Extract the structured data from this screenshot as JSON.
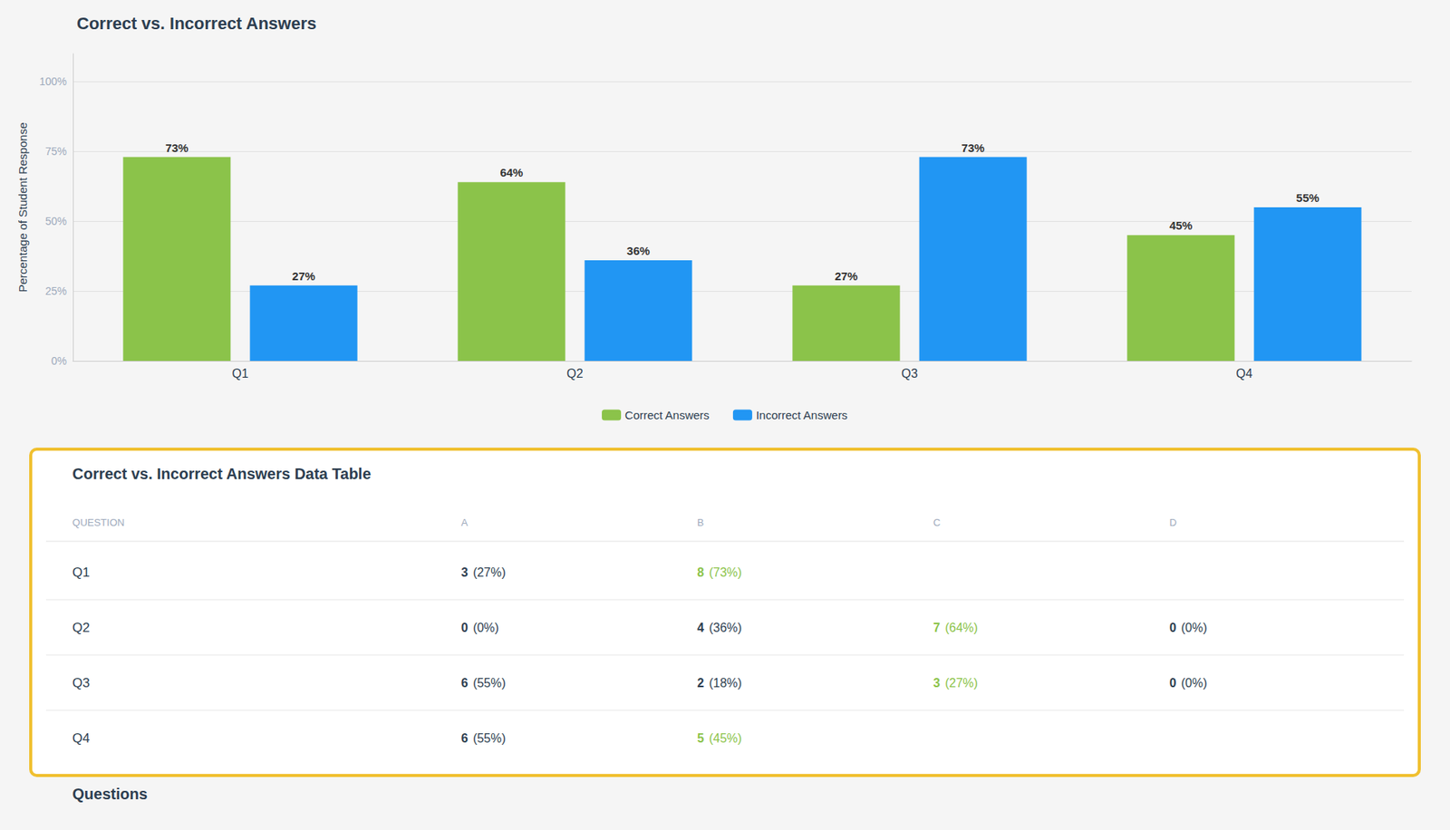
{
  "chart_data": [
    {
      "type": "bar",
      "title": "Correct vs. Incorrect Answers",
      "categories": [
        "Q1",
        "Q2",
        "Q3",
        "Q4"
      ],
      "series": [
        {
          "name": "Correct Answers",
          "color": "#8bc34a",
          "values": [
            73,
            64,
            27,
            45
          ],
          "value_labels": [
            "73%",
            "64%",
            "27%",
            "45%"
          ]
        },
        {
          "name": "Incorrect Answers",
          "color": "#2196f3",
          "values": [
            27,
            36,
            73,
            55
          ],
          "value_labels": [
            "27%",
            "36%",
            "73%",
            "55%"
          ]
        }
      ],
      "ylabel": "Percentage of Student Response",
      "ylim": [
        0,
        110
      ],
      "yticks": [
        {
          "value": 0,
          "label": "0%"
        },
        {
          "value": 25,
          "label": "25%"
        },
        {
          "value": 50,
          "label": "50%"
        },
        {
          "value": 75,
          "label": "75%"
        },
        {
          "value": 100,
          "label": "100%"
        }
      ],
      "grid": true,
      "data_labels": true,
      "legend": "bottom"
    },
    {
      "type": "table",
      "title": "Correct vs. Incorrect Answers Data Table",
      "columns": [
        "QUESTION",
        "A",
        "B",
        "C",
        "D"
      ],
      "rows": [
        {
          "question": "Q1",
          "cells": [
            {
              "text": "3 (27%)"
            },
            {
              "text": "8 (73%)",
              "color": "#8bc34a"
            },
            null,
            null
          ]
        },
        {
          "question": "Q2",
          "cells": [
            {
              "text": "0 (0%)"
            },
            {
              "text": "4 (36%)"
            },
            {
              "text": "7 (64%)",
              "color": "#8bc34a"
            },
            {
              "text": "0 (0%)"
            }
          ]
        },
        {
          "question": "Q3",
          "cells": [
            {
              "text": "6 (55%)"
            },
            {
              "text": "2 (18%)"
            },
            {
              "text": "3 (27%)",
              "color": "#8bc34a"
            },
            {
              "text": "0 (0%)"
            }
          ]
        },
        {
          "question": "Q4",
          "cells": [
            {
              "text": "6 (55%)"
            },
            {
              "text": "5 (45%)",
              "color": "#8bc34a"
            },
            null,
            null
          ]
        }
      ],
      "annotation": "Questions"
    }
  ]
}
